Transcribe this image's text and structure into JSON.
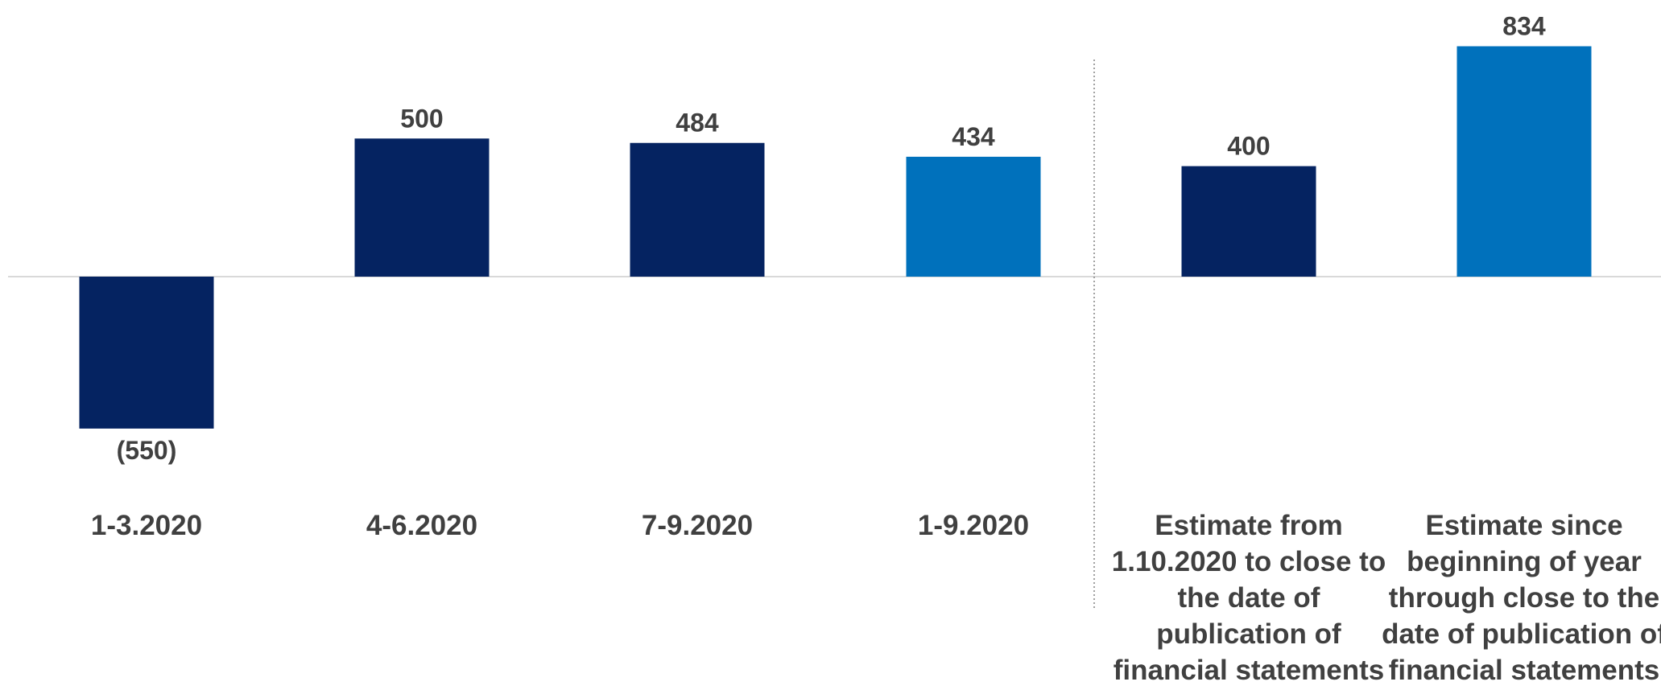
{
  "chart_data": {
    "type": "bar",
    "title": "",
    "xlabel": "",
    "ylabel": "",
    "ylim": [
      -550,
      834
    ],
    "grid": false,
    "legend": "none",
    "colors": {
      "dark": "#052361",
      "light": "#0071BC",
      "axis": "#D9D9D9",
      "divider": "#808080",
      "text": "#404040"
    },
    "categories": [
      "1-3.2020",
      "4-6.2020",
      "7-9.2020",
      "1-9.2020",
      "Estimate from 1.10.2020 to close to the date of publication of financial statements",
      "Estimate since beginning of year through close to the date of publication of financial statements"
    ],
    "category_lines": [
      [
        "1-3.2020"
      ],
      [
        "4-6.2020"
      ],
      [
        "7-9.2020"
      ],
      [
        "1-9.2020"
      ],
      [
        "Estimate from",
        "1.10.2020 to close to",
        "the date of",
        "publication of",
        "financial statements"
      ],
      [
        "Estimate since",
        "beginning of year",
        "through close to the",
        "date of publication of",
        "financial statements"
      ]
    ],
    "values": [
      -550,
      500,
      484,
      434,
      400,
      834
    ],
    "value_labels": [
      "(550)",
      "500",
      "484",
      "434",
      "400",
      "834"
    ],
    "bar_colors": [
      "#052361",
      "#052361",
      "#052361",
      "#0071BC",
      "#052361",
      "#0071BC"
    ]
  }
}
